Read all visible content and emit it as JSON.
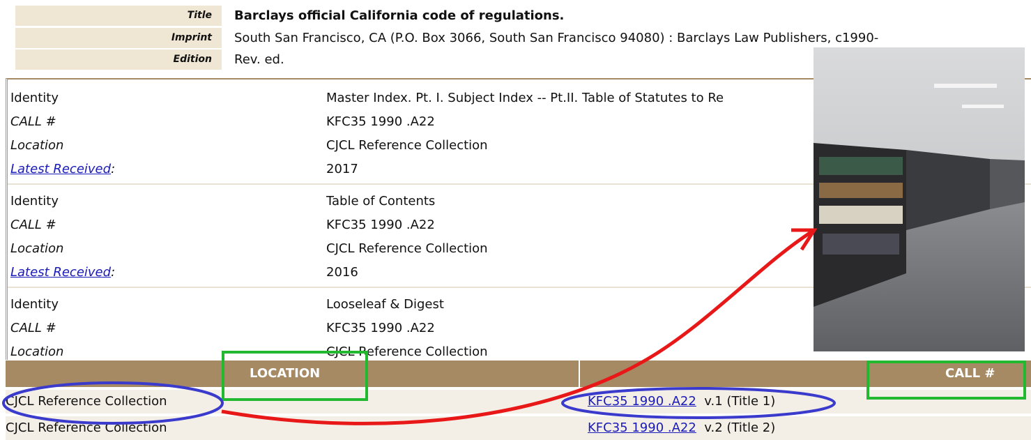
{
  "bib": [
    {
      "label": "Title",
      "value": "Barclays official California code of regulations."
    },
    {
      "label": "Imprint",
      "value": "South San Francisco, CA (P.O. Box 3066, South San Francisco 94080) : Barclays Law Publishers, c1990-"
    },
    {
      "label": "Edition",
      "value": "Rev. ed."
    }
  ],
  "holdings": [
    [
      {
        "label": "Identity",
        "value": "Master Index. Pt. I. Subject Index -- Pt.II. Table of Statutes to Re"
      },
      {
        "label": "CALL #",
        "value": "KFC35 1990 .A22"
      },
      {
        "label": "Location",
        "value": "CJCL Reference Collection"
      },
      {
        "label": {
          "link": "Latest Received",
          "suffix": ":"
        },
        "value": "2017"
      }
    ],
    [
      {
        "label": "Identity",
        "value": "Table of Contents"
      },
      {
        "label": "CALL #",
        "value": "KFC35 1990 .A22"
      },
      {
        "label": "Location",
        "value": "CJCL Reference Collection"
      },
      {
        "label": {
          "link": "Latest Received",
          "suffix": ":"
        },
        "value": "2016"
      }
    ],
    [
      {
        "label": "Identity",
        "value": "Looseleaf & Digest"
      },
      {
        "label": "CALL #",
        "value": "KFC35 1990 .A22"
      },
      {
        "label": "Location",
        "value": "CJCL Reference Collection"
      }
    ]
  ],
  "items": {
    "headers": [
      "LOCATION",
      "CALL #"
    ],
    "rows": [
      {
        "location": "CJCL Reference Collection",
        "call_link": "KFC35 1990 .A22",
        "call_note": "v.1 (Title 1)"
      },
      {
        "location": "CJCL Reference Collection",
        "call_link": "KFC35 1990 .A22",
        "call_note": "v.2 (Title 2)"
      }
    ]
  }
}
